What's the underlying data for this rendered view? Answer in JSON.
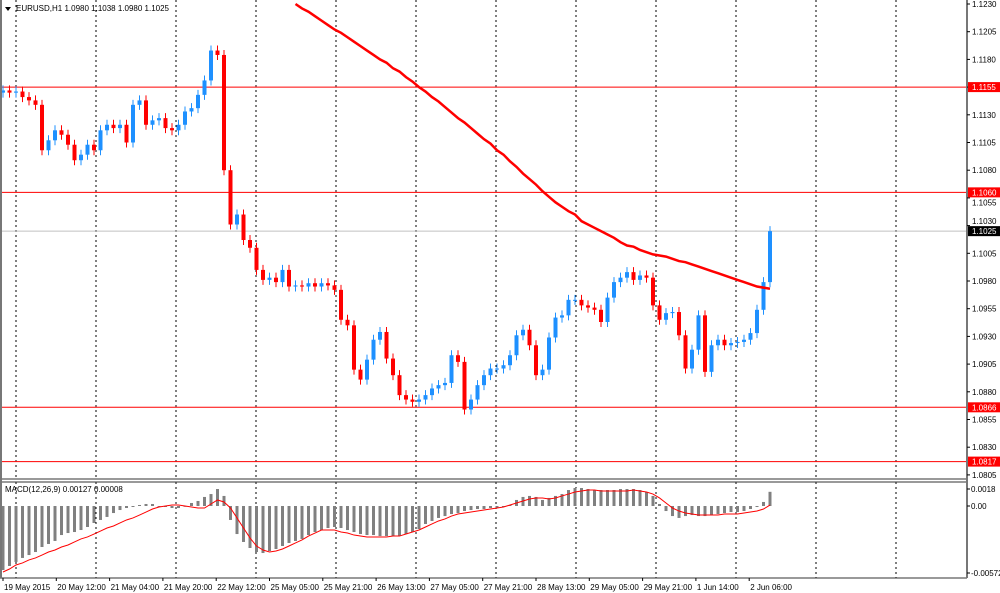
{
  "header": {
    "symbol_label": "EURUSD,H1  1.0980 1.1038 1.0980 1.1025",
    "menu_icon": "triangle-down-icon"
  },
  "indicator_label": "MACD(12,26,9) 0.00127 0.00008",
  "colors": {
    "bull": "#1e90ff",
    "bear": "#ff0000",
    "moving_average": "#ff0000",
    "level_line": "#ff0000",
    "histogram": "#808080",
    "signal": "#ff0000",
    "bid_line": "#c0c0c0"
  },
  "chart_data": [
    {
      "type": "candlestick",
      "title": "EURUSD,H1",
      "ylim": [
        1.0805,
        1.123
      ],
      "y_ticks": [
        "1.1230",
        "1.1205",
        "1.1180",
        "1.1155",
        "1.1130",
        "1.1105",
        "1.1080",
        "1.1055",
        "1.1030",
        "1.1005",
        "1.0980",
        "1.0955",
        "1.0930",
        "1.0905",
        "1.0880",
        "1.0855",
        "1.0830",
        "1.0805"
      ],
      "x_ticks": [
        "19 May 2015",
        "20 May 12:00",
        "21 May 04:00",
        "21 May 20:00",
        "22 May 12:00",
        "25 May 05:00",
        "25 May 21:00",
        "26 May 13:00",
        "27 May 05:00",
        "27 May 21:00",
        "28 May 13:00",
        "29 May 05:00",
        "29 May 21:00",
        "1 Jun 14:00",
        "2 Jun 06:00"
      ],
      "grid": true,
      "first_open": 1.115,
      "close": [
        1.1152,
        1.115,
        1.1151,
        1.1146,
        1.1143,
        1.1139,
        1.1098,
        1.1107,
        1.1116,
        1.1112,
        1.1103,
        1.1089,
        1.1094,
        1.1103,
        1.1098,
        1.1116,
        1.1121,
        1.1118,
        1.1121,
        1.1105,
        1.1139,
        1.1143,
        1.1121,
        1.1125,
        1.1127,
        1.1118,
        1.1116,
        1.1121,
        1.1133,
        1.1136,
        1.1148,
        1.1161,
        1.1188,
        1.1184,
        1.108,
        1.1031,
        1.104,
        1.1017,
        1.101,
        1.099,
        1.0981,
        1.0983,
        1.0979,
        1.099,
        1.0975,
        1.0976,
        1.0975,
        1.0978,
        1.0975,
        1.0978,
        1.0976,
        1.0972,
        1.0945,
        1.094,
        1.09,
        1.0891,
        1.0909,
        1.0927,
        1.0934,
        1.091,
        1.0895,
        1.0877,
        1.0873,
        1.0871,
        1.0873,
        1.0877,
        1.0883,
        1.0886,
        1.0888,
        1.0913,
        1.0907,
        1.0864,
        1.0873,
        1.0886,
        1.0895,
        1.0901,
        1.0901,
        1.0904,
        1.0913,
        1.0931,
        1.0936,
        1.0922,
        1.0895,
        1.09,
        1.0929,
        1.0947,
        1.0949,
        1.0963,
        1.0963,
        1.0958,
        1.0956,
        1.0954,
        1.0943,
        1.0965,
        1.0979,
        1.0983,
        1.0988,
        1.0981,
        1.0985,
        1.0983,
        1.0958,
        1.0945,
        1.0951,
        1.0952,
        1.0931,
        1.0901,
        1.0918,
        1.0949,
        1.0898,
        1.0922,
        1.0927,
        1.0922,
        1.0924,
        1.0925,
        1.0927,
        1.0933,
        1.0954,
        1.0979,
        1.1025
      ],
      "moving_average": [
        null,
        null,
        null,
        null,
        null,
        null,
        null,
        null,
        null,
        null,
        null,
        null,
        null,
        null,
        null,
        null,
        null,
        null,
        null,
        null,
        null,
        null,
        null,
        null,
        null,
        null,
        null,
        null,
        null,
        null,
        null,
        null,
        null,
        null,
        null,
        null,
        null,
        null,
        null,
        null,
        null,
        null,
        null,
        null,
        null,
        1.123,
        1.1226,
        1.1223,
        1.1219,
        1.1215,
        1.1211,
        1.1207,
        1.1204,
        1.12,
        1.1196,
        1.1192,
        1.1188,
        1.1184,
        1.118,
        1.1177,
        1.1172,
        1.1169,
        1.1164,
        1.116,
        1.1155,
        1.1151,
        1.1146,
        1.1142,
        1.1137,
        1.1132,
        1.1127,
        1.1123,
        1.1118,
        1.1113,
        1.1108,
        1.1104,
        1.1098,
        1.1094,
        1.1088,
        1.1083,
        1.1077,
        1.1072,
        1.1067,
        1.1061,
        1.1056,
        1.1051,
        1.1047,
        1.1043,
        1.104,
        1.1034,
        1.1031,
        1.1028,
        1.1025,
        1.1022,
        1.1019,
        1.1015,
        1.1012,
        1.1011,
        1.1008,
        1.1006,
        1.1004,
        1.1003,
        1.1002,
        1.1,
        1.0998,
        1.0997,
        1.0995,
        1.0993,
        1.0991,
        1.0989,
        1.0987,
        1.0985,
        1.0983,
        1.0981,
        1.0979,
        1.0977,
        1.0975,
        1.0974,
        1.0973
      ],
      "levels": [
        {
          "value": 1.1155,
          "label": "1.1155"
        },
        {
          "value": 1.106,
          "label": "1.1060"
        },
        {
          "value": 1.0866,
          "label": "1.0866"
        },
        {
          "value": 1.0817,
          "label": "1.0817"
        }
      ],
      "bid": {
        "value": 1.1025,
        "label": "1.1025"
      }
    },
    {
      "type": "bar+line",
      "title": "MACD(12,26,9)",
      "ylim": [
        -0.00572,
        0.0018
      ],
      "y_ticks": [
        "0.0018",
        "0.00",
        "-0.00572"
      ],
      "histogram": [
        -0.00573,
        -0.00537,
        -0.00501,
        -0.00465,
        -0.00439,
        -0.00412,
        -0.00367,
        -0.0034,
        -0.00313,
        -0.0026,
        -0.00242,
        -0.00233,
        -0.00215,
        -0.00188,
        -0.00152,
        -0.00125,
        -0.00098,
        -0.00063,
        -0.00036,
        -0.00018,
        -9e-05,
        9e-05,
        0.00018,
        0.00018,
        0,
        -9e-05,
        -0.00018,
        -0.00018,
        0,
        0.00027,
        0.00045,
        0.00081,
        0.00107,
        0.00152,
        0.0009,
        -0.00125,
        -0.00251,
        -0.00322,
        -0.00376,
        -0.00412,
        -0.00421,
        -0.00403,
        -0.00385,
        -0.00358,
        -0.00331,
        -0.00313,
        -0.00295,
        -0.0026,
        -0.00233,
        -0.00215,
        -0.00197,
        -0.00188,
        -0.00197,
        -0.00215,
        -0.00233,
        -0.00251,
        -0.0026,
        -0.0026,
        -0.00269,
        -0.00269,
        -0.00269,
        -0.00269,
        -0.00251,
        -0.00233,
        -0.00206,
        -0.00161,
        -0.00134,
        -0.00107,
        -0.0009,
        -0.00072,
        -0.00063,
        -0.00045,
        -0.00036,
        -0.00027,
        -0.00027,
        -0.00018,
        -0.00018,
        -9e-05,
        9e-05,
        0.00054,
        0.00081,
        0.0009,
        0.00081,
        0.00054,
        0.00072,
        0.0009,
        0.00107,
        0.00143,
        0.00161,
        0.00161,
        0.00152,
        0.00143,
        0.00143,
        0.00143,
        0.00143,
        0.00152,
        0.00152,
        0.00152,
        0.00143,
        0.00125,
        0.0009,
        0.00018,
        -0.00045,
        -0.0009,
        -0.00107,
        -0.0009,
        -0.00081,
        -0.0009,
        -0.0009,
        -0.00081,
        -0.00072,
        -0.00063,
        -0.00054,
        -0.00054,
        -0.00045,
        -0.00027,
        -9e-05,
        0.00036,
        0.00127
      ],
      "signal": [
        -0.00591,
        -0.00564,
        -0.00528,
        -0.0051,
        -0.00483,
        -0.00465,
        -0.00439,
        -0.00412,
        -0.00394,
        -0.00367,
        -0.00349,
        -0.00322,
        -0.00295,
        -0.00277,
        -0.00251,
        -0.00224,
        -0.00197,
        -0.00179,
        -0.00152,
        -0.00125,
        -0.00107,
        -0.00081,
        -0.00054,
        -0.00027,
        -9e-05,
        0,
        9e-05,
        9e-05,
        0,
        -9e-05,
        -0.00018,
        -0.00018,
        0.00018,
        0.00054,
        0.00036,
        -0.00018,
        -0.00107,
        -0.00197,
        -0.00286,
        -0.00358,
        -0.00394,
        -0.00412,
        -0.00403,
        -0.00385,
        -0.00358,
        -0.00331,
        -0.00304,
        -0.00269,
        -0.00242,
        -0.00215,
        -0.00215,
        -0.00215,
        -0.00233,
        -0.00242,
        -0.0026,
        -0.00269,
        -0.00277,
        -0.00277,
        -0.00277,
        -0.00277,
        -0.00269,
        -0.00269,
        -0.00251,
        -0.00233,
        -0.00215,
        -0.00188,
        -0.00161,
        -0.00134,
        -0.00116,
        -0.0009,
        -0.00072,
        -0.00063,
        -0.00054,
        -0.00045,
        -0.00036,
        -0.00027,
        -0.00018,
        -9e-05,
        9e-05,
        0.00027,
        0.00045,
        0.00063,
        0.00072,
        0.00072,
        0.00063,
        0.00072,
        0.0009,
        0.00107,
        0.00125,
        0.00134,
        0.00143,
        0.00143,
        0.00134,
        0.00134,
        0.00134,
        0.00134,
        0.00134,
        0.00143,
        0.00134,
        0.00125,
        0.00107,
        0.00072,
        0.00027,
        -0.00018,
        -0.00045,
        -0.00063,
        -0.00072,
        -0.00081,
        -0.00081,
        -0.00081,
        -0.00081,
        -0.00072,
        -0.00072,
        -0.00072,
        -0.00063,
        -0.00054,
        -0.00045,
        -0.00027,
        8e-05
      ]
    }
  ]
}
